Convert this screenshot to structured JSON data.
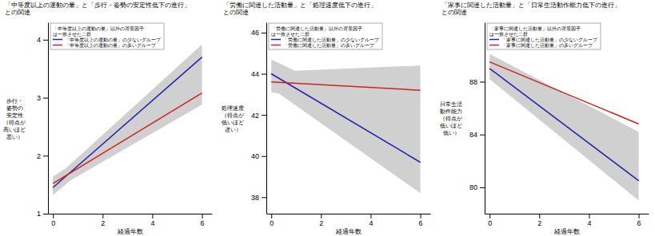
{
  "chart_data": [
    {
      "type": "line",
      "title": [
        "「中等度以上の運動の量」と「歩行・姿勢の安定性低下の進行」",
        "との関連"
      ],
      "xlabel": "経過年数",
      "ylabel": [
        "歩行・",
        "姿勢の",
        "安定性",
        "（得点が",
        "高いほど",
        "悪い）"
      ],
      "x": [
        0,
        6
      ],
      "series": [
        {
          "name": "「中等度以上の運動の量」の少ないグループ",
          "color": "#2222aa",
          "values": [
            1.45,
            3.7
          ]
        },
        {
          "name": "「中等度以上の運動の量」の多いグループ",
          "color": "#cc2222",
          "values": [
            1.52,
            3.08
          ]
        }
      ],
      "band": {
        "color": "#c8c8c8",
        "upper_x": [
          0,
          0.5143,
          6
        ],
        "upper": [
          1.64,
          1.7806,
          3.92
        ],
        "lower_x": [
          0,
          0.7059,
          6
        ],
        "lower": [
          1.32,
          1.5741,
          2.88
        ]
      },
      "xlim": [
        -0.2,
        6.4
      ],
      "xticks": [
        0,
        2,
        4,
        6
      ],
      "ylim": [
        1.0,
        4.3
      ],
      "yticks": [
        1,
        2,
        3,
        4
      ],
      "grid": false,
      "legend": "upper left",
      "legend_title": [
        "「中等度以上の運動の量」以外の背景因子",
        "は一致させた二群"
      ]
    },
    {
      "type": "line",
      "title": [
        "「労働に関連した活動量」と「処理速度低下の進行」",
        "との関連"
      ],
      "xlabel": "経過年数",
      "ylabel": [
        "処理速度",
        "（得点が",
        "低いほど",
        "遅い）"
      ],
      "x": [
        0,
        6
      ],
      "series": [
        {
          "name": "「労働に関連した活動量」の少ないグループ",
          "color": "#2222aa",
          "values": [
            44.0,
            39.7
          ]
        },
        {
          "name": "「労働に関連した活動量」の多いグループ",
          "color": "#cc2222",
          "values": [
            43.6,
            43.2
          ]
        }
      ],
      "band": {
        "color": "#c8c8c8",
        "upper_x": [
          0,
          0.9474,
          6
        ],
        "upper": [
          44.7,
          44.1474,
          44.4
        ],
        "lower_x": [
          0,
          0.3,
          6
        ],
        "lower": [
          43.1,
          43.045,
          38.2
        ]
      },
      "xlim": [
        -0.2,
        6.4
      ],
      "xticks": [
        0,
        2,
        4,
        6
      ],
      "ylim": [
        37.2,
        46.5
      ],
      "yticks": [
        38,
        40,
        42,
        44,
        46
      ],
      "grid": false,
      "legend": "upper left",
      "legend_title": [
        "「労働に関連した活動量」以外の背景因子",
        "は一致させた二群"
      ]
    },
    {
      "type": "line",
      "title": [
        "「家事に関連した活動量」と「日常生活動作能力低下の進行」",
        "との関連"
      ],
      "xlabel": "経過年数",
      "ylabel": [
        "日常生活",
        "動作能力",
        "（得点が",
        "低いほど",
        "低い）"
      ],
      "x": [
        0,
        6
      ],
      "series": [
        {
          "name": "「家事に関連した活動量」の少ないグループ",
          "color": "#2222aa",
          "values": [
            89.0,
            80.5
          ]
        },
        {
          "name": "「家事に関連した活動量」の多いグループ",
          "color": "#cc2222",
          "values": [
            89.5,
            84.8
          ]
        }
      ],
      "band": {
        "color": "#c8c8c8",
        "upper_x": [
          0,
          6
        ],
        "upper": [
          90.1,
          84.2
        ],
        "lower_x": [
          0,
          6
        ],
        "lower": [
          88.2,
          79.0
        ]
      },
      "xlim": [
        -0.2,
        6.4
      ],
      "xticks": [
        0,
        2,
        4,
        6
      ],
      "ylim": [
        78.0,
        92.5
      ],
      "yticks": [
        80,
        84,
        88
      ],
      "grid": false,
      "legend": "upper left",
      "legend_title": [
        "「家事に関連した活動量」以外の背景因子",
        "は一致させた二群"
      ]
    }
  ]
}
